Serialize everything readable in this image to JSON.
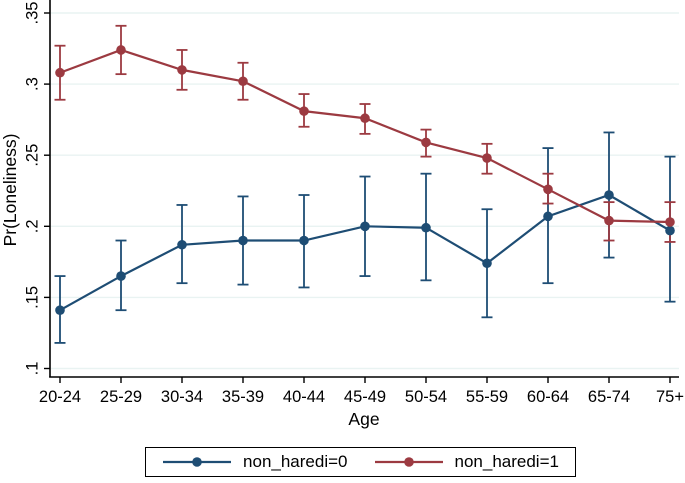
{
  "chart_data": {
    "type": "line",
    "title": "",
    "xlabel": "Age",
    "ylabel": "Pr(Loneliness)",
    "categories": [
      "20-24",
      "25-29",
      "30-34",
      "35-39",
      "40-44",
      "45-49",
      "50-54",
      "55-59",
      "60-64",
      "65-74",
      "75+"
    ],
    "ylim": [
      0.1,
      0.35
    ],
    "yticks": [
      0.1,
      0.15,
      0.2,
      0.25,
      0.3,
      0.35
    ],
    "ytick_labels": [
      ".1",
      ".15",
      ".2",
      ".25",
      ".3",
      ".35"
    ],
    "grid": true,
    "legend_position": "bottom",
    "error_bars": "95% confidence interval caps",
    "colors": {
      "background": "#ffffff",
      "gridline": "#e9f3f2",
      "axis": "#000000",
      "navy": "#1e4d74",
      "maroon": "#9c3a41"
    },
    "series": [
      {
        "name": "non_haredi=0",
        "color": "#1e4d74",
        "values": [
          0.141,
          0.165,
          0.187,
          0.19,
          0.19,
          0.2,
          0.199,
          0.174,
          0.207,
          0.222,
          0.197
        ],
        "ci_low": [
          0.118,
          0.141,
          0.16,
          0.159,
          0.157,
          0.165,
          0.162,
          0.136,
          0.16,
          0.178,
          0.147
        ],
        "ci_high": [
          0.165,
          0.19,
          0.215,
          0.221,
          0.222,
          0.235,
          0.237,
          0.212,
          0.255,
          0.266,
          0.249
        ]
      },
      {
        "name": "non_haredi=1",
        "color": "#9c3a41",
        "values": [
          0.308,
          0.324,
          0.31,
          0.302,
          0.281,
          0.276,
          0.259,
          0.248,
          0.226,
          0.204,
          0.203
        ],
        "ci_low": [
          0.289,
          0.307,
          0.296,
          0.289,
          0.27,
          0.265,
          0.249,
          0.237,
          0.216,
          0.19,
          0.189
        ],
        "ci_high": [
          0.327,
          0.341,
          0.324,
          0.315,
          0.293,
          0.286,
          0.268,
          0.258,
          0.237,
          0.217,
          0.217
        ]
      }
    ]
  }
}
